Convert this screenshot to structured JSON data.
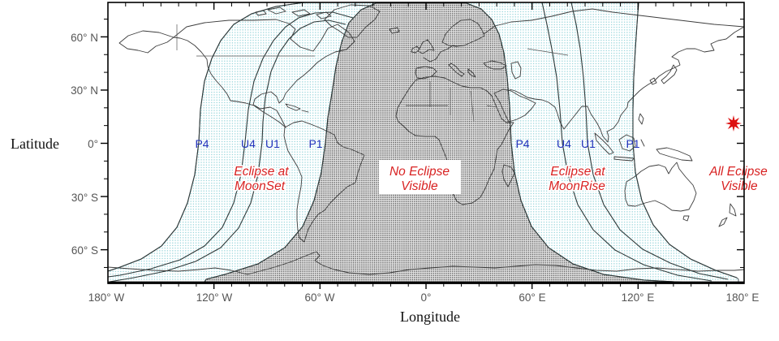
{
  "figure": {
    "kind": "lunar-eclipse-visibility-map",
    "axes": {
      "y": {
        "title": "Latitude",
        "ticks": [
          "60° N",
          "30° N",
          "0°",
          "30° S",
          "60° S"
        ]
      },
      "x": {
        "title": "Longitude",
        "ticks": [
          "180° W",
          "120° W",
          "60° W",
          "0°",
          "60° E",
          "120° E",
          "180° E"
        ]
      }
    },
    "contact_labels": {
      "west": [
        "P4",
        "U4",
        "U1",
        "P1"
      ],
      "east": [
        "P4",
        "U4",
        "U1",
        "P1"
      ]
    },
    "zone_labels": {
      "moonset": {
        "line1": "Eclipse at",
        "line2": "MoonSet"
      },
      "none": {
        "line1": "No Eclipse",
        "line2": "Visible"
      },
      "moonrise": {
        "line1": "Eclipse at",
        "line2": "MoonRise"
      },
      "all": {
        "line1": "All Eclipse",
        "line2": "Visible"
      }
    },
    "marker": {
      "symbol": "star",
      "color": "#dd1111"
    },
    "colors": {
      "contact_label": "#2233bb",
      "zone_label": "#d82222",
      "penumbra_dot": "#8fd2d8",
      "no_eclipse_dot": "#4a4a4a",
      "frame": "#000000"
    }
  }
}
